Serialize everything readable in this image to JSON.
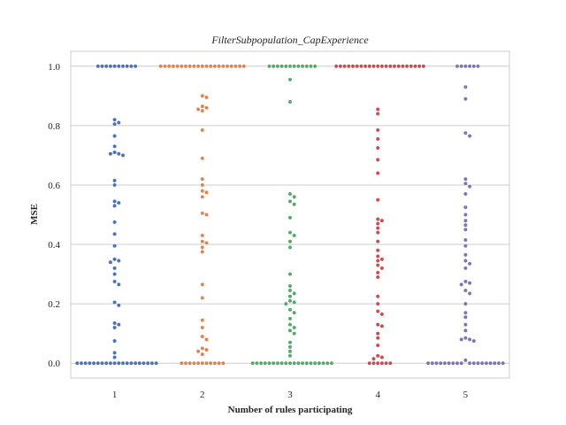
{
  "chart_data": {
    "type": "scatter",
    "subtype": "swarm",
    "title": "FilterSubpopulation_CapExperience",
    "xlabel": "Number of rules participating",
    "ylabel": "MSE",
    "categories": [
      "1",
      "2",
      "3",
      "4",
      "5"
    ],
    "ylim": [
      -0.05,
      1.05
    ],
    "yticks": [
      "0.0",
      "0.2",
      "0.4",
      "0.6",
      "0.8",
      "1.0"
    ],
    "grid": "horizontal",
    "colors": [
      "#4c72b0",
      "#dd8452",
      "#55a868",
      "#c44e52",
      "#8172b3"
    ],
    "series": [
      {
        "category": "1",
        "values": [
          0,
          0,
          0,
          0,
          0,
          0,
          0,
          0,
          0,
          0,
          0,
          0,
          0,
          0,
          0,
          0,
          0,
          0,
          0,
          0,
          0.02,
          0.035,
          0.075,
          0.12,
          0.13,
          0.135,
          0.195,
          0.205,
          0.265,
          0.275,
          0.3,
          0.32,
          0.34,
          0.345,
          0.35,
          0.395,
          0.435,
          0.475,
          0.53,
          0.54,
          0.545,
          0.6,
          0.615,
          0.7,
          0.705,
          0.705,
          0.71,
          0.73,
          0.765,
          0.805,
          0.81,
          0.82,
          1,
          1,
          1,
          1,
          1,
          1,
          1,
          1,
          1,
          1
        ]
      },
      {
        "category": "2",
        "values": [
          0,
          0,
          0,
          0,
          0,
          0,
          0,
          0,
          0,
          0,
          0,
          0.03,
          0.04,
          0.045,
          0.05,
          0.08,
          0.09,
          0.12,
          0.145,
          0.22,
          0.265,
          0.375,
          0.39,
          0.405,
          0.41,
          0.43,
          0.5,
          0.505,
          0.56,
          0.575,
          0.58,
          0.6,
          0.62,
          0.69,
          0.785,
          0.85,
          0.855,
          0.86,
          0.865,
          0.895,
          0.9,
          1,
          1,
          1,
          1,
          1,
          1,
          1,
          1,
          1,
          1,
          1,
          1,
          1,
          1,
          1,
          1,
          1,
          1,
          1,
          1,
          1
        ]
      },
      {
        "category": "3",
        "values": [
          0,
          0,
          0,
          0,
          0,
          0,
          0,
          0,
          0,
          0,
          0,
          0,
          0,
          0,
          0,
          0,
          0,
          0,
          0,
          0,
          0.025,
          0.04,
          0.055,
          0.07,
          0.1,
          0.11,
          0.12,
          0.13,
          0.15,
          0.17,
          0.18,
          0.2,
          0.205,
          0.21,
          0.225,
          0.235,
          0.245,
          0.26,
          0.3,
          0.39,
          0.41,
          0.43,
          0.44,
          0.49,
          0.535,
          0.545,
          0.56,
          0.57,
          0.88,
          0.955,
          1,
          1,
          1,
          1,
          1,
          1,
          1,
          1,
          1,
          1,
          1,
          1
        ]
      },
      {
        "category": "4",
        "values": [
          0,
          0,
          0,
          0,
          0,
          0,
          0.015,
          0.02,
          0.025,
          0.06,
          0.085,
          0.1,
          0.125,
          0.13,
          0.165,
          0.175,
          0.2,
          0.225,
          0.29,
          0.305,
          0.32,
          0.33,
          0.345,
          0.35,
          0.36,
          0.38,
          0.41,
          0.44,
          0.455,
          0.47,
          0.48,
          0.485,
          0.55,
          0.64,
          0.685,
          0.725,
          0.755,
          0.785,
          0.84,
          0.855,
          1,
          1,
          1,
          1,
          1,
          1,
          1,
          1,
          1,
          1,
          1,
          1,
          1,
          1,
          1,
          1,
          1,
          1,
          1,
          1,
          1,
          1
        ]
      },
      {
        "category": "5",
        "values": [
          0,
          0,
          0,
          0,
          0,
          0,
          0,
          0,
          0,
          0,
          0,
          0,
          0,
          0,
          0,
          0,
          0,
          0,
          0.01,
          0.075,
          0.08,
          0.08,
          0.085,
          0.11,
          0.13,
          0.155,
          0.17,
          0.2,
          0.235,
          0.245,
          0.265,
          0.27,
          0.275,
          0.32,
          0.335,
          0.345,
          0.365,
          0.395,
          0.415,
          0.45,
          0.465,
          0.48,
          0.5,
          0.525,
          0.57,
          0.595,
          0.605,
          0.62,
          0.765,
          0.775,
          0.89,
          0.93,
          1,
          1,
          1,
          1,
          1,
          1
        ]
      }
    ]
  }
}
